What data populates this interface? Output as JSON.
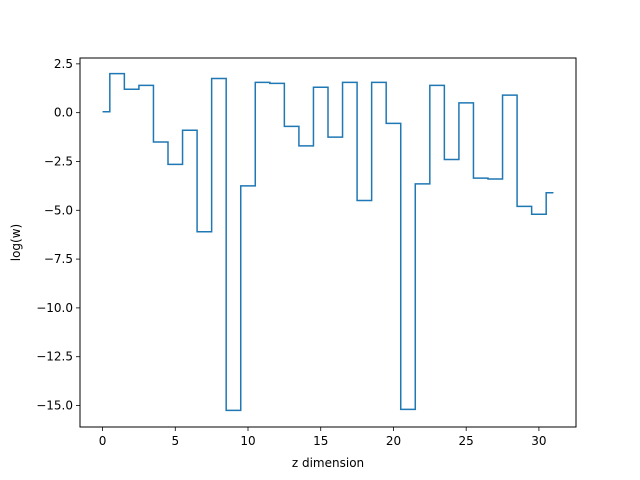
{
  "chart_data": {
    "type": "line",
    "drawstyle": "steps-mid",
    "xlabel": "z dimension",
    "ylabel": "log(w)",
    "xlim": [
      -1.55,
      32.55
    ],
    "ylim": [
      -16.1,
      2.8
    ],
    "xticks": [
      0,
      5,
      10,
      15,
      20,
      25,
      30
    ],
    "yticks": [
      -15.0,
      -12.5,
      -10.0,
      -7.5,
      -5.0,
      -2.5,
      0.0,
      2.5
    ],
    "xtick_labels": [
      "0",
      "5",
      "10",
      "15",
      "20",
      "25",
      "30"
    ],
    "ytick_labels": [
      "−15.0",
      "−12.5",
      "−10.0",
      "−7.5",
      "−5.0",
      "−2.5",
      "0.0",
      "2.5"
    ],
    "grid": false,
    "series": [
      {
        "color": "#1f77b4",
        "x": [
          0,
          1,
          2,
          3,
          4,
          5,
          6,
          7,
          8,
          9,
          10,
          11,
          12,
          13,
          14,
          15,
          16,
          17,
          18,
          19,
          20,
          21,
          22,
          23,
          24,
          25,
          26,
          27,
          28,
          29,
          30,
          31
        ],
        "y": [
          0.05,
          2.0,
          1.2,
          1.4,
          -1.5,
          -2.65,
          -0.9,
          -6.1,
          1.75,
          -15.25,
          -3.75,
          1.55,
          1.5,
          -0.7,
          -1.7,
          1.3,
          -1.25,
          1.55,
          -4.5,
          1.55,
          -0.55,
          -15.2,
          -3.65,
          1.4,
          -2.4,
          0.5,
          -3.35,
          -3.4,
          0.9,
          -4.8,
          -5.2,
          -4.1
        ]
      }
    ]
  }
}
